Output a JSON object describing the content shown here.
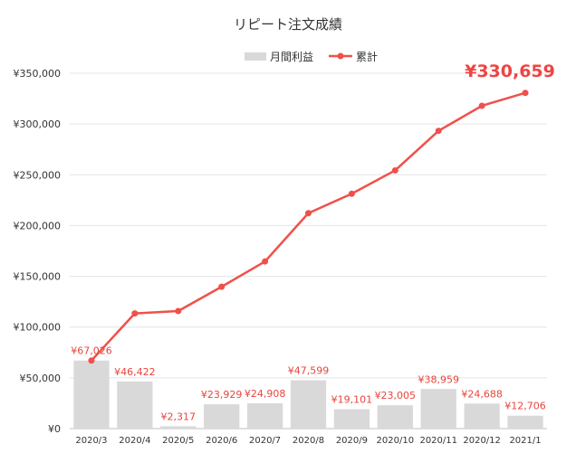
{
  "chart_data": {
    "type": "bar+line",
    "title": "リピート注文成績",
    "categories": [
      "2020/3",
      "2020/4",
      "2020/5",
      "2020/6",
      "2020/7",
      "2020/8",
      "2020/9",
      "2020/10",
      "2020/11",
      "2020/12",
      "2021/1"
    ],
    "series": [
      {
        "name": "月間利益",
        "type": "bar",
        "values": [
          67026,
          46422,
          2317,
          23929,
          24908,
          47599,
          19101,
          23005,
          38959,
          24688,
          12706
        ],
        "labels": [
          "¥67,026",
          "¥46,422",
          "¥2,317",
          "¥23,929",
          "¥24,908",
          "¥47,599",
          "¥19,101",
          "¥23,005",
          "¥38,959",
          "¥24,688",
          "¥12,706"
        ],
        "color": "#d9d9d9",
        "label_color": "#e8453c"
      },
      {
        "name": "累計",
        "type": "line",
        "values": [
          67026,
          113448,
          115765,
          139694,
          164602,
          212201,
          231302,
          254307,
          293266,
          317954,
          330659
        ],
        "color": "#f0504a"
      }
    ],
    "final_label": "¥330,659",
    "ylim": [
      0,
      350000
    ],
    "yticks": [
      0,
      50000,
      100000,
      150000,
      200000,
      250000,
      300000,
      350000
    ],
    "ytick_labels": [
      "¥0",
      "¥50,000",
      "¥100,000",
      "¥150,000",
      "¥200,000",
      "¥250,000",
      "¥300,000",
      "¥350,000"
    ],
    "grid": true,
    "legend_position": "top-center"
  }
}
